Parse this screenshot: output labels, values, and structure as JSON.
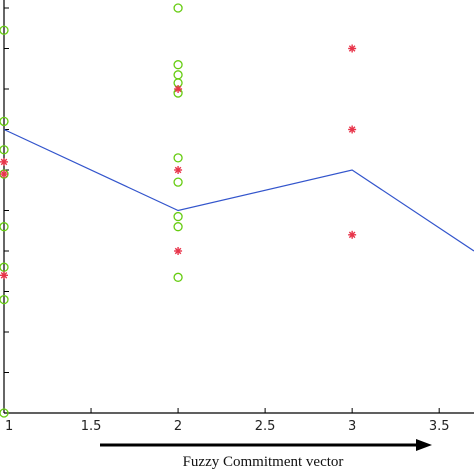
{
  "chart_data": {
    "type": "scatter",
    "title": "",
    "xlabel": "Fuzzy Commitment vector",
    "ylabel": "",
    "xlim": [
      1,
      3.7
    ],
    "ylim": [
      0,
      10
    ],
    "x_ticks": [
      "1",
      "1.5",
      "2",
      "2.5",
      "3",
      "3.5"
    ],
    "grid": false,
    "colors": {
      "circle": "#66cc11",
      "star": "#e8344a",
      "line": "#3355cc",
      "axis": "#000000"
    },
    "series": [
      {
        "marker": "circle",
        "points": [
          {
            "x": 1,
            "y": 9.45
          },
          {
            "x": 1,
            "y": 7.2
          },
          {
            "x": 1,
            "y": 6.5
          },
          {
            "x": 1,
            "y": 5.9
          },
          {
            "x": 1,
            "y": 4.6
          },
          {
            "x": 1,
            "y": 3.6
          },
          {
            "x": 1,
            "y": 2.8
          },
          {
            "x": 1,
            "y": 0
          },
          {
            "x": 2,
            "y": 10
          },
          {
            "x": 2,
            "y": 8.6
          },
          {
            "x": 2,
            "y": 8.35
          },
          {
            "x": 2,
            "y": 8.15
          },
          {
            "x": 2,
            "y": 7.9
          },
          {
            "x": 2,
            "y": 6.3
          },
          {
            "x": 2,
            "y": 5.7
          },
          {
            "x": 2,
            "y": 4.85
          },
          {
            "x": 2,
            "y": 4.6
          },
          {
            "x": 2,
            "y": 3.35
          }
        ]
      },
      {
        "marker": "star",
        "points": [
          {
            "x": 1,
            "y": 6.2
          },
          {
            "x": 1,
            "y": 5.9
          },
          {
            "x": 1,
            "y": 3.4
          },
          {
            "x": 2,
            "y": 8.0
          },
          {
            "x": 2,
            "y": 6.0
          },
          {
            "x": 2,
            "y": 4.0
          },
          {
            "x": 3,
            "y": 9.0
          },
          {
            "x": 3,
            "y": 7.0
          },
          {
            "x": 3,
            "y": 4.4
          }
        ]
      },
      {
        "marker": "line",
        "points": [
          {
            "x": 1,
            "y": 7.0
          },
          {
            "x": 2,
            "y": 5.0
          },
          {
            "x": 3,
            "y": 6.0
          },
          {
            "x": 3.7,
            "y": 4.0
          }
        ]
      }
    ]
  }
}
